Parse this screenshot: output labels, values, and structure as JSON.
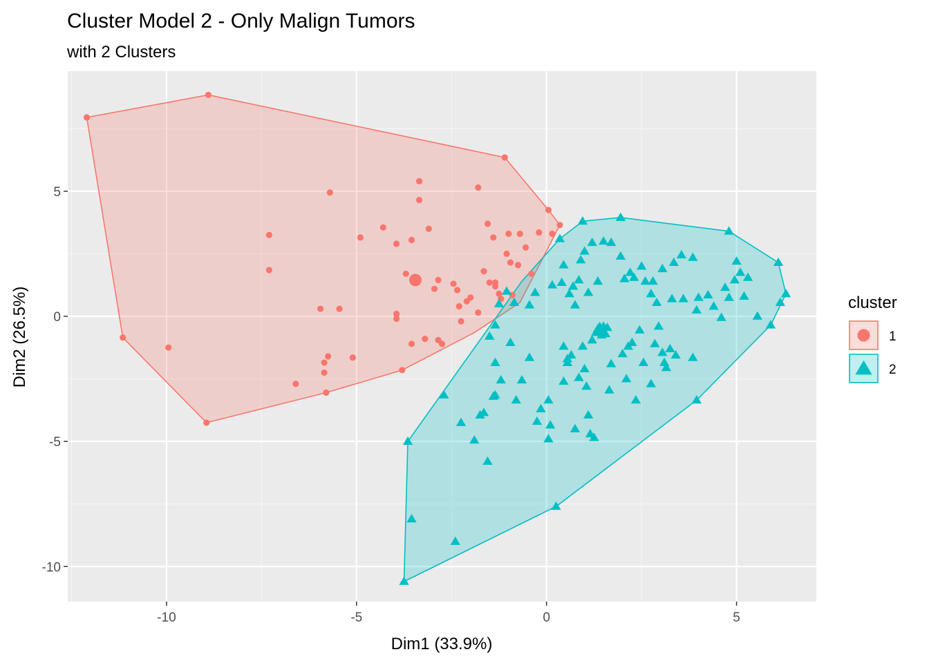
{
  "chart_data": {
    "type": "scatter",
    "title": "Cluster Model 2 - Only Malign Tumors",
    "subtitle": "with 2 Clusters",
    "xlabel": "Dim1 (33.9%)",
    "ylabel": "Dim2 (26.5%)",
    "xlim": [
      -12.6,
      7.1
    ],
    "ylim": [
      -11.4,
      9.8
    ],
    "x_ticks": [
      -10,
      -5,
      0,
      5
    ],
    "y_ticks": [
      -10,
      -5,
      0,
      5
    ],
    "x_tick_labels": [
      "-10",
      "-5",
      "0",
      "5"
    ],
    "y_tick_labels": [
      "-10",
      "-5",
      "0",
      "5"
    ],
    "grid": true,
    "legend": {
      "title": "cluster",
      "position": "right"
    },
    "series": [
      {
        "name": "1",
        "color": "#F8766D",
        "shape": "circle",
        "centroid": [
          -3.45,
          1.45
        ],
        "hull": [
          [
            -12.1,
            7.95
          ],
          [
            -8.9,
            8.85
          ],
          [
            -1.1,
            6.35
          ],
          [
            0.05,
            4.25
          ],
          [
            0.35,
            3.65
          ],
          [
            -0.7,
            0.55
          ],
          [
            -1.9,
            -0.65
          ],
          [
            -3.8,
            -2.15
          ],
          [
            -5.8,
            -3.05
          ],
          [
            -8.95,
            -4.25
          ],
          [
            -11.15,
            -0.85
          ]
        ],
        "points": [
          [
            -12.1,
            7.95
          ],
          [
            -8.9,
            8.85
          ],
          [
            -1.1,
            6.35
          ],
          [
            0.05,
            4.25
          ],
          [
            0.35,
            3.65
          ],
          [
            -11.15,
            -0.85
          ],
          [
            -8.95,
            -4.25
          ],
          [
            -5.8,
            -3.05
          ],
          [
            -3.8,
            -2.15
          ],
          [
            -9.95,
            -1.25
          ],
          [
            -7.3,
            3.25
          ],
          [
            -7.3,
            1.85
          ],
          [
            -6.6,
            -2.7
          ],
          [
            -5.7,
            4.95
          ],
          [
            -5.95,
            0.3
          ],
          [
            -5.45,
            0.3
          ],
          [
            -5.85,
            -1.85
          ],
          [
            -5.85,
            -2.25
          ],
          [
            -5.75,
            -1.6
          ],
          [
            -4.9,
            3.15
          ],
          [
            -5.1,
            -1.65
          ],
          [
            -4.3,
            3.55
          ],
          [
            -3.95,
            2.9
          ],
          [
            -3.95,
            0.1
          ],
          [
            -3.95,
            -0.1
          ],
          [
            -3.7,
            1.7
          ],
          [
            -3.55,
            -1.1
          ],
          [
            -3.55,
            3.05
          ],
          [
            -3.35,
            5.4
          ],
          [
            -3.35,
            4.65
          ],
          [
            -3.2,
            -0.9
          ],
          [
            -3.1,
            3.5
          ],
          [
            -2.95,
            1.1
          ],
          [
            -2.85,
            1.45
          ],
          [
            -2.85,
            -0.95
          ],
          [
            -2.75,
            -1.1
          ],
          [
            -2.45,
            1.3
          ],
          [
            -2.35,
            1.05
          ],
          [
            -2.3,
            0.4
          ],
          [
            -2.25,
            -0.2
          ],
          [
            -2.1,
            0.6
          ],
          [
            -2.0,
            0.75
          ],
          [
            -1.8,
            5.15
          ],
          [
            -1.8,
            0.15
          ],
          [
            -1.65,
            1.8
          ],
          [
            -1.55,
            3.7
          ],
          [
            -1.5,
            1.35
          ],
          [
            -1.4,
            3.15
          ],
          [
            -1.35,
            1.35
          ],
          [
            -1.35,
            1.2
          ],
          [
            -1.2,
            0.7
          ],
          [
            -1.05,
            2.5
          ],
          [
            -1.0,
            3.3
          ],
          [
            -0.95,
            2.15
          ],
          [
            -0.75,
            2.05
          ],
          [
            -0.7,
            3.3
          ],
          [
            -0.55,
            2.75
          ],
          [
            -0.4,
            1.7
          ],
          [
            -0.2,
            3.35
          ],
          [
            0.15,
            3.3
          ],
          [
            -1.25,
            0.9
          ],
          [
            -0.9,
            0.85
          ]
        ]
      },
      {
        "name": "2",
        "color": "#00BFC4",
        "shape": "triangle",
        "centroid": [
          1.4,
          -0.55
        ],
        "hull": [
          [
            0.95,
            3.8
          ],
          [
            1.95,
            3.95
          ],
          [
            4.8,
            3.4
          ],
          [
            6.1,
            2.15
          ],
          [
            6.3,
            0.9
          ],
          [
            5.9,
            -0.35
          ],
          [
            3.95,
            -3.35
          ],
          [
            0.25,
            -7.6
          ],
          [
            -3.75,
            -10.6
          ],
          [
            -3.65,
            -5.0
          ],
          [
            -0.65,
            1.4
          ],
          [
            0.35,
            3.1
          ]
        ],
        "points": [
          [
            0.95,
            3.8
          ],
          [
            1.95,
            3.95
          ],
          [
            4.8,
            3.4
          ],
          [
            6.1,
            2.15
          ],
          [
            6.3,
            0.9
          ],
          [
            5.9,
            -0.35
          ],
          [
            3.95,
            -3.35
          ],
          [
            0.25,
            -7.6
          ],
          [
            -3.75,
            -10.6
          ],
          [
            -3.65,
            -5.0
          ],
          [
            -3.55,
            -8.1
          ],
          [
            -2.4,
            -9.0
          ],
          [
            -1.55,
            -5.8
          ],
          [
            -2.7,
            -3.15
          ],
          [
            -2.25,
            -4.25
          ],
          [
            -1.9,
            -4.95
          ],
          [
            -1.75,
            -3.95
          ],
          [
            -1.65,
            -3.85
          ],
          [
            -1.4,
            -3.2
          ],
          [
            -1.35,
            -1.85
          ],
          [
            -1.35,
            -3.15
          ],
          [
            -1.2,
            -2.55
          ],
          [
            -0.95,
            -1.05
          ],
          [
            -0.8,
            -3.35
          ],
          [
            -0.65,
            -2.55
          ],
          [
            -0.45,
            -1.65
          ],
          [
            -0.25,
            -4.2
          ],
          [
            -0.15,
            -3.7
          ],
          [
            0.05,
            -3.35
          ],
          [
            0.1,
            -4.35
          ],
          [
            0.05,
            -4.9
          ],
          [
            0.45,
            -1.2
          ],
          [
            0.45,
            -2.6
          ],
          [
            0.55,
            -1.85
          ],
          [
            0.65,
            -1.55
          ],
          [
            0.75,
            -4.5
          ],
          [
            0.85,
            -2.45
          ],
          [
            0.95,
            -1.2
          ],
          [
            1.0,
            -2.1
          ],
          [
            1.05,
            -2.8
          ],
          [
            1.1,
            -3.95
          ],
          [
            1.15,
            -4.7
          ],
          [
            1.25,
            -4.85
          ],
          [
            1.3,
            -0.65
          ],
          [
            1.35,
            -0.5
          ],
          [
            1.45,
            -0.75
          ],
          [
            1.5,
            -0.4
          ],
          [
            1.55,
            -0.7
          ],
          [
            1.65,
            -2.95
          ],
          [
            1.7,
            -1.9
          ],
          [
            2.0,
            -1.5
          ],
          [
            2.15,
            -1.2
          ],
          [
            2.1,
            -2.5
          ],
          [
            2.25,
            -1.05
          ],
          [
            2.35,
            -3.35
          ],
          [
            2.45,
            -0.55
          ],
          [
            2.55,
            -1.85
          ],
          [
            2.75,
            -2.7
          ],
          [
            2.85,
            -1.1
          ],
          [
            2.95,
            -0.4
          ],
          [
            3.05,
            -1.45
          ],
          [
            3.1,
            -1.85
          ],
          [
            3.15,
            -2.05
          ],
          [
            3.25,
            -1.3
          ],
          [
            3.4,
            -1.55
          ],
          [
            3.85,
            -1.65
          ],
          [
            0.35,
            3.1
          ],
          [
            0.45,
            2.05
          ],
          [
            0.6,
            0.9
          ],
          [
            0.7,
            1.2
          ],
          [
            0.85,
            1.45
          ],
          [
            0.9,
            2.25
          ],
          [
            1.0,
            2.6
          ],
          [
            1.2,
            2.95
          ],
          [
            1.35,
            1.4
          ],
          [
            1.5,
            3.0
          ],
          [
            1.7,
            2.95
          ],
          [
            1.95,
            2.4
          ],
          [
            2.05,
            1.5
          ],
          [
            2.2,
            1.75
          ],
          [
            2.3,
            1.55
          ],
          [
            2.5,
            2.0
          ],
          [
            2.6,
            1.4
          ],
          [
            2.75,
            0.9
          ],
          [
            2.8,
            1.4
          ],
          [
            3.05,
            1.9
          ],
          [
            3.3,
            0.7
          ],
          [
            3.6,
            0.7
          ],
          [
            3.85,
            2.35
          ],
          [
            4.0,
            0.75
          ],
          [
            4.25,
            0.85
          ],
          [
            4.4,
            0.4
          ],
          [
            4.6,
            -0.05
          ],
          [
            4.8,
            0.75
          ],
          [
            4.95,
            1.45
          ],
          [
            5.0,
            2.2
          ],
          [
            5.1,
            1.75
          ],
          [
            5.3,
            1.55
          ],
          [
            5.2,
            0.8
          ],
          [
            5.55,
            0.0
          ],
          [
            6.15,
            0.55
          ],
          [
            -1.5,
            -0.8
          ],
          [
            -1.35,
            -0.35
          ],
          [
            -1.25,
            0.5
          ],
          [
            -1.05,
            1.0
          ],
          [
            -0.85,
            0.55
          ],
          [
            -0.45,
            0.45
          ],
          [
            -0.3,
            0.95
          ],
          [
            0.15,
            1.25
          ],
          [
            0.4,
            1.35
          ],
          [
            0.55,
            -1.7
          ],
          [
            0.75,
            0.45
          ],
          [
            1.1,
            0.95
          ],
          [
            1.2,
            -0.95
          ],
          [
            1.6,
            -0.45
          ],
          [
            3.35,
            2.15
          ],
          [
            3.55,
            2.45
          ],
          [
            2.9,
            0.55
          ],
          [
            3.95,
            0.25
          ],
          [
            4.7,
            1.15
          ]
        ]
      }
    ]
  }
}
